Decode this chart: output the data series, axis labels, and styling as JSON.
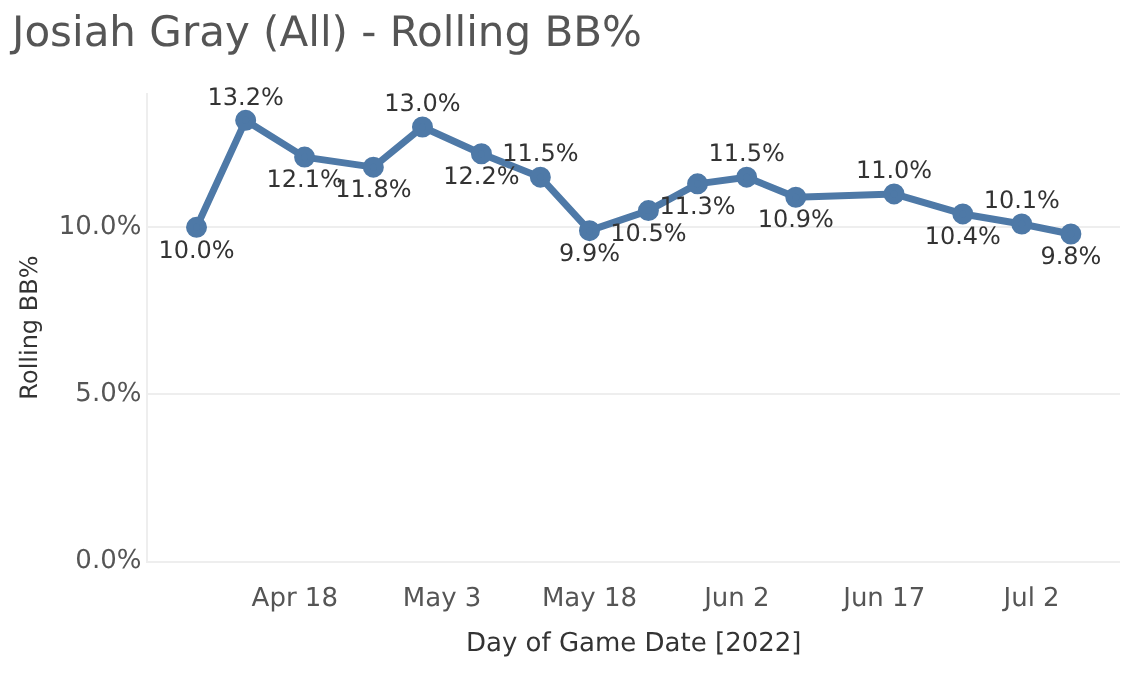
{
  "chart_data": {
    "type": "line",
    "title": "Josiah Gray (All) - Rolling BB%",
    "xlabel": "Day of Game Date [2022]",
    "ylabel": "Rolling BB%",
    "x": [
      "2022-04-08",
      "2022-04-13",
      "2022-04-19",
      "2022-04-26",
      "2022-05-01",
      "2022-05-07",
      "2022-05-13",
      "2022-05-18",
      "2022-05-24",
      "2022-05-29",
      "2022-06-03",
      "2022-06-08",
      "2022-06-18",
      "2022-06-25",
      "2022-07-01",
      "2022-07-06"
    ],
    "series": [
      {
        "color": "#4e79a7",
        "values": [
          10.0,
          13.2,
          12.1,
          11.8,
          13.0,
          12.2,
          11.5,
          9.9,
          10.5,
          11.3,
          11.5,
          10.9,
          11.0,
          10.4,
          10.1,
          9.8
        ]
      }
    ],
    "xlim": [
      "2022-04-03",
      "2022-07-11"
    ],
    "xticks": [
      {
        "value": "2022-04-18",
        "label": "Apr 18"
      },
      {
        "value": "2022-05-03",
        "label": "May 3"
      },
      {
        "value": "2022-05-18",
        "label": "May 18"
      },
      {
        "value": "2022-06-02",
        "label": "Jun 2"
      },
      {
        "value": "2022-06-17",
        "label": "Jun 17"
      },
      {
        "value": "2022-07-02",
        "label": "Jul 2"
      }
    ],
    "ylim": [
      0,
      14
    ],
    "yticks": [
      {
        "value": 0,
        "label": "0.0%"
      },
      {
        "value": 5,
        "label": "5.0%"
      },
      {
        "value": 10,
        "label": "10.0%"
      }
    ],
    "value_labels": [
      "10.0%",
      "13.2%",
      "12.1%",
      "11.8%",
      "13.0%",
      "12.2%",
      "11.5%",
      "9.9%",
      "10.5%",
      "11.3%",
      "11.5%",
      "10.9%",
      "11.0%",
      "10.4%",
      "10.1%",
      "9.8%"
    ],
    "grid": "y",
    "marker": "circle",
    "line_style": "solid",
    "legend": false
  }
}
